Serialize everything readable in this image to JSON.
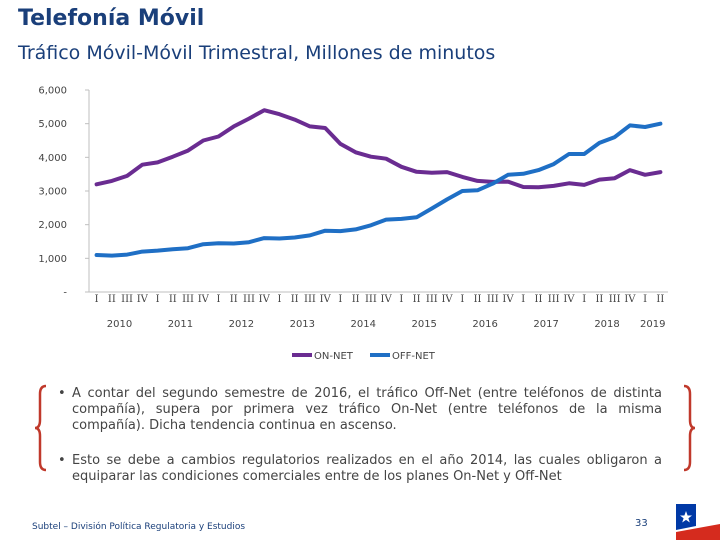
{
  "header": {
    "title": "Telefonía Móvil",
    "subtitle": "Tráfico Móvil-Móvil Trimestral, Millones de minutos"
  },
  "colors": {
    "title": "#1a3f7a",
    "on_net": "#6a2c91",
    "off_net": "#1f6fc5",
    "brace": "#c0392b"
  },
  "chart_data": {
    "type": "line",
    "quarters": [
      "I",
      "II",
      "III",
      "IV",
      "I",
      "II",
      "III",
      "IV",
      "I",
      "II",
      "III",
      "IV",
      "I",
      "II",
      "III",
      "IV",
      "I",
      "II",
      "III",
      "IV",
      "I",
      "II",
      "III",
      "IV",
      "I",
      "II",
      "III",
      "IV",
      "I",
      "II",
      "III",
      "IV",
      "I",
      "II",
      "III",
      "IV",
      "I",
      "II"
    ],
    "years": [
      "2010",
      "2011",
      "2012",
      "2013",
      "2014",
      "2015",
      "2016",
      "2017",
      "2018",
      "2019"
    ],
    "ylim": [
      0,
      6000
    ],
    "yticks": [
      0,
      1000,
      2000,
      3000,
      4000,
      5000,
      6000
    ],
    "ytick_labels": [
      "-",
      "1,000",
      "2,000",
      "3,000",
      "4,000",
      "5,000",
      "6,000"
    ],
    "legend_position": "bottom",
    "series": [
      {
        "name": "ON-NET",
        "color": "#6a2c91",
        "values": [
          3200,
          3300,
          3450,
          3780,
          3850,
          4020,
          4200,
          4500,
          4620,
          4920,
          5150,
          5400,
          5280,
          5120,
          4920,
          4870,
          4400,
          4150,
          4020,
          3960,
          3720,
          3570,
          3540,
          3560,
          3420,
          3300,
          3270,
          3280,
          3120,
          3110,
          3150,
          3230,
          3180,
          3340,
          3380,
          3620,
          3480,
          3560
        ]
      },
      {
        "name": "OFF-NET",
        "color": "#1f6fc5",
        "values": [
          1100,
          1080,
          1110,
          1200,
          1230,
          1270,
          1300,
          1420,
          1450,
          1440,
          1480,
          1600,
          1590,
          1620,
          1680,
          1820,
          1810,
          1860,
          1980,
          2150,
          2170,
          2220,
          2480,
          2750,
          3000,
          3020,
          3220,
          3480,
          3510,
          3620,
          3800,
          4100,
          4100,
          4430,
          4600,
          4950,
          4900,
          5000
        ]
      }
    ]
  },
  "bullets": [
    "A contar del segundo semestre de 2016, el tráfico Off-Net (entre teléfonos de distinta compañía), supera por primera vez tráfico On-Net (entre teléfonos de la misma compañía). Dicha tendencia continua en ascenso.",
    "Esto se debe a cambios regulatorios realizados en el año 2014, las cuales obligaron a equiparar las condiciones comerciales entre de los planes On-Net y Off-Net"
  ],
  "footer": {
    "source": "Subtel – División Política Regulatoria y Estudios",
    "page": "33"
  }
}
